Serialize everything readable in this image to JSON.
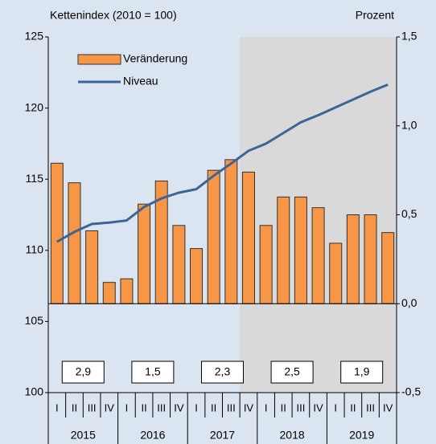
{
  "chart_data": {
    "type": "bar",
    "left_label": "Kettenindex (2010 = 100)",
    "right_label": "Prozent",
    "categories": [
      "I",
      "II",
      "III",
      "IV",
      "I",
      "II",
      "III",
      "IV",
      "I",
      "II",
      "III",
      "IV",
      "I",
      "II",
      "III",
      "IV",
      "I",
      "II",
      "III",
      "IV"
    ],
    "years": [
      "2015",
      "2016",
      "2017",
      "2018",
      "2019"
    ],
    "annual_labels": [
      "2,9",
      "1,5",
      "2,3",
      "2,5",
      "1,9"
    ],
    "series": [
      {
        "name": "Veränderung",
        "type": "bar",
        "axis": "y2",
        "color": "#f79646",
        "values": [
          0.79,
          0.68,
          0.41,
          0.12,
          0.14,
          0.56,
          0.69,
          0.44,
          0.31,
          0.75,
          0.81,
          0.74,
          0.44,
          0.6,
          0.6,
          0.54,
          0.34,
          0.5,
          0.5,
          0.4
        ]
      },
      {
        "name": "Niveau",
        "type": "line",
        "color": "#3c6496",
        "values": [
          110.6,
          111.3,
          111.85,
          111.95,
          112.1,
          113.05,
          113.65,
          114.05,
          114.3,
          115.25,
          116.1,
          117.0,
          117.5,
          118.25,
          119.0,
          119.5,
          120.05,
          120.6,
          121.15,
          121.65
        ]
      }
    ],
    "ylim": [
      100,
      125
    ],
    "yticks": [
      100,
      105,
      110,
      115,
      120,
      125
    ],
    "y2lim": [
      -0.5,
      1.5
    ],
    "y2ticks": [
      {
        "value": -0.5,
        "label": "-0,5"
      },
      {
        "value": 0,
        "label": "0,0"
      },
      {
        "value": 0.5,
        "label": "0,5"
      },
      {
        "value": 1.0,
        "label": "1,0"
      },
      {
        "value": 1.5,
        "label": "1,5"
      }
    ]
  }
}
